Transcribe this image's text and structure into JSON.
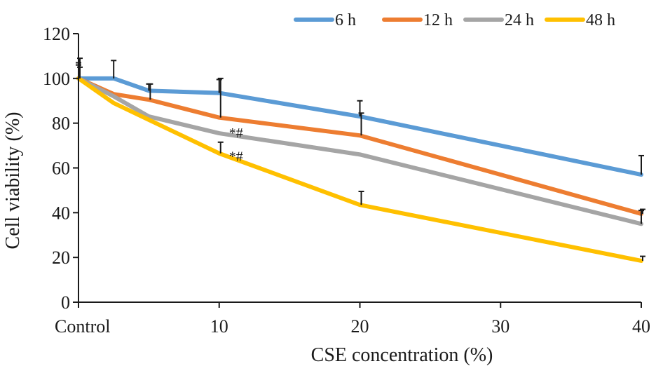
{
  "chart_data": {
    "type": "line",
    "title": "",
    "xlabel": "CSE concentration (%)",
    "ylabel": "Cell viability (%)",
    "xlim": [
      0,
      40
    ],
    "ylim": [
      0,
      120
    ],
    "x_ticks": [
      {
        "value": 0,
        "label": "Control"
      },
      {
        "value": 10,
        "label": "10"
      },
      {
        "value": 20,
        "label": "20"
      },
      {
        "value": 30,
        "label": "30"
      },
      {
        "value": 40,
        "label": "40"
      }
    ],
    "y_ticks": [
      0,
      20,
      40,
      60,
      80,
      100,
      120
    ],
    "grid": false,
    "legend_position": "top-right",
    "series": [
      {
        "name": "6 h",
        "color": "#5b9bd5",
        "x": [
          0,
          2.5,
          5,
          10,
          20,
          40
        ],
        "values": [
          100,
          100,
          94.5,
          93.5,
          83,
          57
        ],
        "errors": [
          6,
          8,
          3,
          6,
          7,
          8.5
        ]
      },
      {
        "name": "12 h",
        "color": "#ed7d31",
        "x": [
          0,
          2.5,
          5,
          10,
          20,
          40
        ],
        "values": [
          100,
          93,
          90.5,
          82.5,
          74.5,
          39.5
        ],
        "errors": [
          9,
          0,
          7,
          17.5,
          10,
          2
        ]
      },
      {
        "name": "24 h",
        "color": "#a5a5a5",
        "x": [
          0,
          2.5,
          5,
          10,
          20,
          40
        ],
        "values": [
          100,
          92,
          83,
          75.5,
          66,
          35
        ],
        "errors": [
          7,
          0,
          0,
          0,
          0,
          6
        ]
      },
      {
        "name": "48 h",
        "color": "#ffc000",
        "x": [
          0,
          2.5,
          5,
          10,
          20,
          40
        ],
        "values": [
          100,
          89,
          81.5,
          66.5,
          43.5,
          18.5
        ],
        "errors": [
          5,
          0,
          0,
          5,
          6,
          2
        ]
      }
    ],
    "annotations": [
      {
        "text": "*#",
        "x": 10,
        "y": 75.5
      },
      {
        "text": "*#",
        "x": 10,
        "y": 65
      }
    ]
  }
}
